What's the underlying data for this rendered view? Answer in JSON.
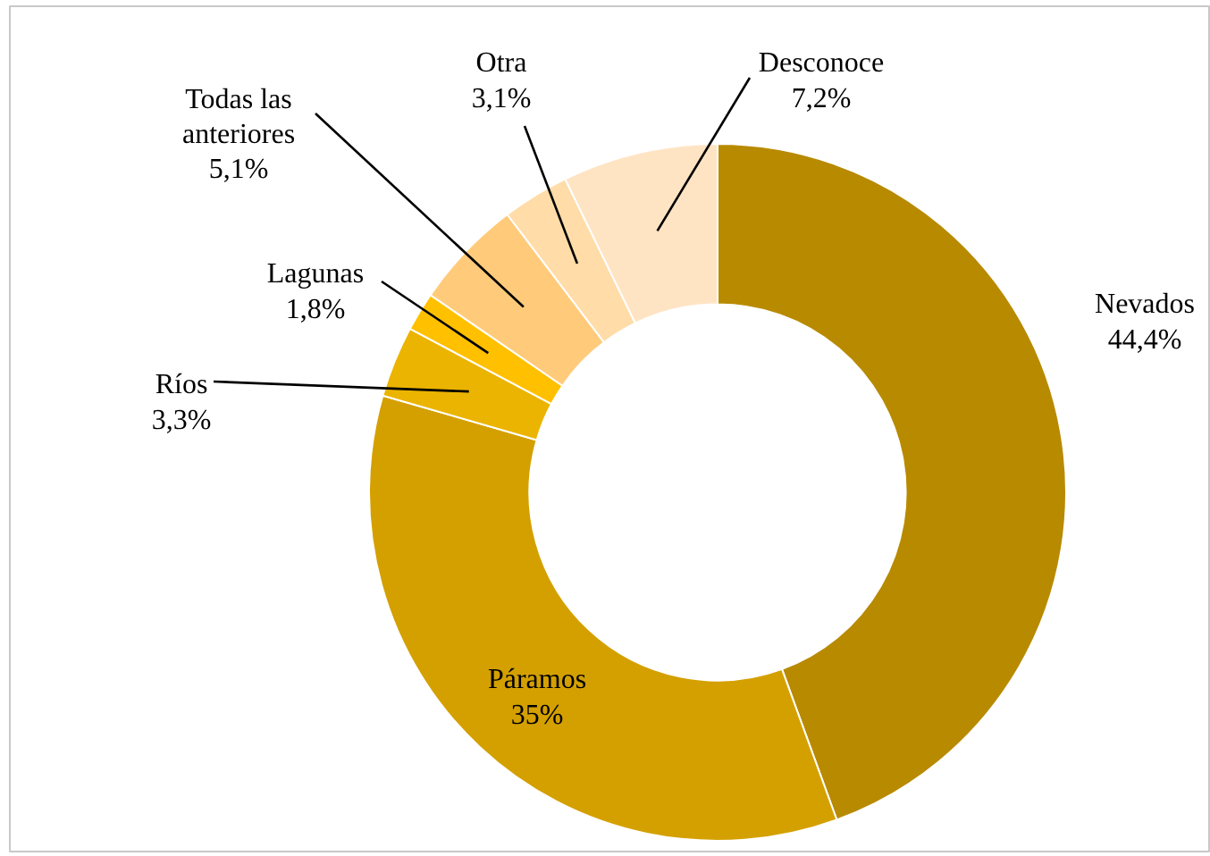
{
  "chart_data": {
    "type": "donut",
    "categories": [
      "Nevados",
      "Páramos",
      "Ríos",
      "Lagunas",
      "Todas las anteriores",
      "Otra",
      "Desconoce"
    ],
    "values": [
      44.4,
      35,
      3.3,
      1.8,
      5.1,
      3.1,
      7.2
    ],
    "value_labels": [
      "44,4%",
      "35%",
      "3,3%",
      "1,8%",
      "5,1%",
      "3,1%",
      "7,2%"
    ],
    "colors": [
      "#b88a00",
      "#d4a000",
      "#ebb400",
      "#ffc000",
      "#ffcb7a",
      "#ffdca8",
      "#ffe4c4"
    ]
  }
}
